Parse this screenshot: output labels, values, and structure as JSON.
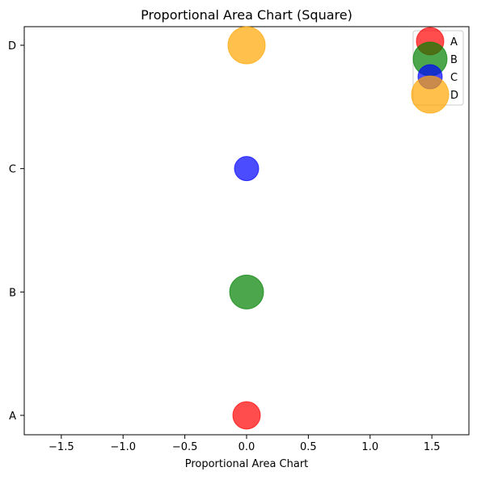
{
  "chart_data": {
    "type": "scatter",
    "title": "Proportional Area Chart (Square)",
    "xlabel": "Proportional Area Chart",
    "ylabel": "",
    "xlim": [
      -1.8,
      1.8
    ],
    "x_ticks": [
      -1.5,
      -1.0,
      -0.5,
      0.0,
      0.5,
      1.0,
      1.5
    ],
    "x_tick_labels": [
      "−1.5",
      "−1.0",
      "−0.5",
      "0.0",
      "0.5",
      "1.0",
      "1.5"
    ],
    "categories": [
      "A",
      "B",
      "C",
      "D"
    ],
    "series": [
      {
        "name": "A",
        "x": 0.0,
        "y": "A",
        "size": 30,
        "color": "#ff0000"
      },
      {
        "name": "B",
        "x": 0.0,
        "y": "B",
        "size": 40,
        "color": "#008000"
      },
      {
        "name": "C",
        "x": 0.0,
        "y": "C",
        "size": 25,
        "color": "#0000ff"
      },
      {
        "name": "D",
        "x": 0.0,
        "y": "D",
        "size": 45,
        "color": "#ffa500"
      }
    ],
    "alpha": 0.7,
    "grid": false,
    "legend_position": "top-right"
  }
}
